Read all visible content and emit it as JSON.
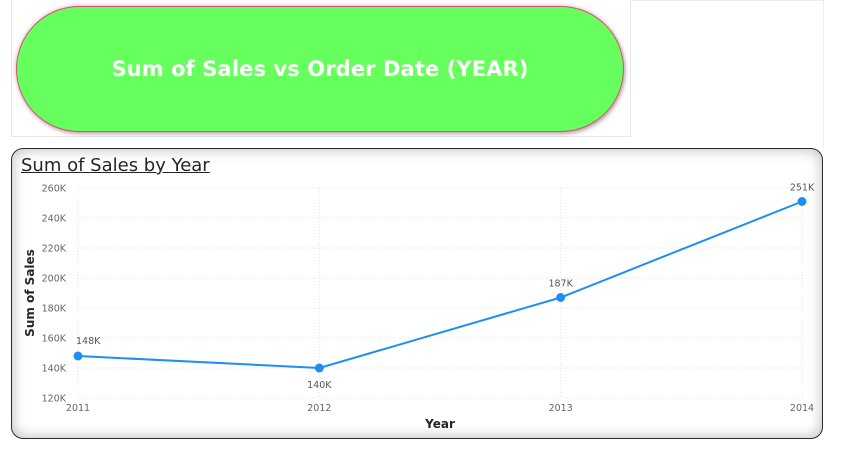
{
  "header": {
    "title": "Sum of Sales vs Order Date (YEAR)",
    "pill_color": "#66ff5e"
  },
  "chart_data": {
    "type": "line",
    "title": "Sum of Sales by Year",
    "xlabel": "Year",
    "ylabel": "Sum of Sales",
    "x": [
      "2011",
      "2012",
      "2013",
      "2014"
    ],
    "values": [
      148000,
      140000,
      187000,
      251000
    ],
    "data_labels": [
      "148K",
      "140K",
      "187K",
      "251K"
    ],
    "ylim": [
      120000,
      260000
    ],
    "yticks": [
      120000,
      140000,
      160000,
      180000,
      200000,
      220000,
      240000,
      260000
    ],
    "ytick_labels": [
      "120K",
      "140K",
      "160K",
      "180K",
      "200K",
      "220K",
      "240K",
      "260K"
    ],
    "grid": true,
    "line_color": "#1f8ef1"
  }
}
